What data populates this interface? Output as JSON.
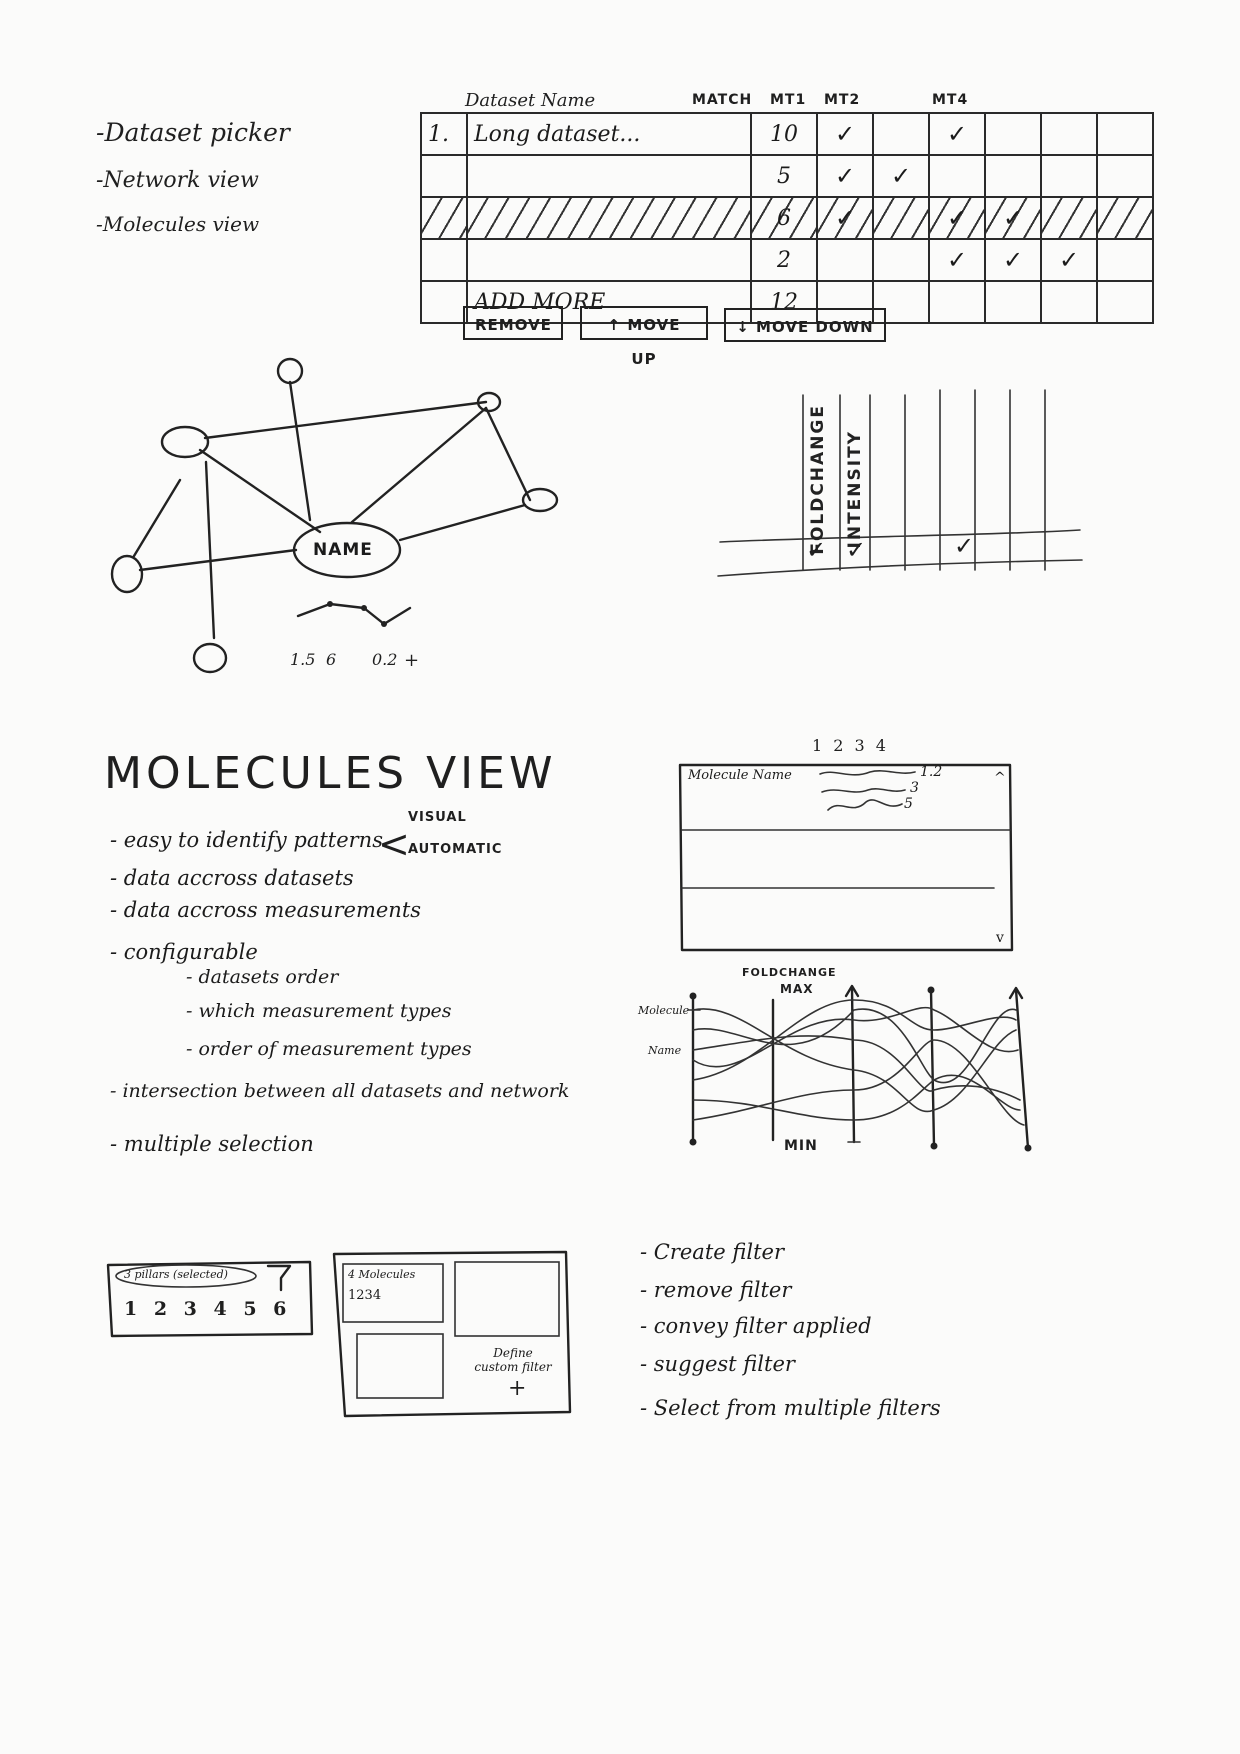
{
  "top_notes": [
    "-Dataset picker",
    "-Network view",
    "-Molecules view"
  ],
  "dataset_table": {
    "headers": {
      "name": "Dataset Name",
      "match": "MATCH",
      "mt1": "MT1",
      "mt2": "MT2",
      "mt4": "MT4"
    },
    "rows": [
      {
        "idx": "1.",
        "name": "Long dataset...",
        "match": "10",
        "checks": [
          "✓",
          "",
          "✓",
          "",
          "",
          ""
        ],
        "hatched": false
      },
      {
        "idx": "",
        "name": "",
        "match": "5",
        "checks": [
          "✓",
          "✓",
          "",
          "",
          "",
          ""
        ],
        "hatched": false
      },
      {
        "idx": "",
        "name": "",
        "match": "6",
        "checks": [
          "✓",
          "",
          "✓",
          "✓",
          "",
          ""
        ],
        "hatched": true
      },
      {
        "idx": "",
        "name": "",
        "match": "2",
        "checks": [
          "",
          "",
          "✓",
          "✓",
          "✓",
          ""
        ],
        "hatched": false
      },
      {
        "idx": "",
        "name": "ADD MORE",
        "match": "12",
        "checks": [
          "",
          "",
          "",
          "",
          "",
          ""
        ],
        "hatched": false
      }
    ],
    "buttons": {
      "remove": "REMOVE",
      "move_up": "↑ MOVE UP",
      "move_down": "↓ MOVE DOWN"
    }
  },
  "network": {
    "center_label": "NAME",
    "spark_labels": [
      "1.5",
      "6",
      "0.2",
      "+"
    ]
  },
  "measure_columns": {
    "labels": [
      "FOLDCHANGE",
      "INTENSITY"
    ],
    "checks": [
      "✓",
      "✓",
      "✓"
    ]
  },
  "molecules_view": {
    "title": "MOLECULES VIEW",
    "bullets": [
      "- easy to identify patterns",
      "- data accross datasets",
      "- data accross measurements",
      "- configurable",
      "- datasets order",
      "- which measurement types",
      "- order of measurement types",
      "- intersection between all datasets and network",
      "- multiple selection"
    ],
    "branch": [
      "VISUAL",
      "AUTOMATIC"
    ]
  },
  "molecule_list": {
    "col_numbers": "1 2 3 4",
    "header": "Molecule Name",
    "values": [
      "1.2",
      "3",
      "5"
    ],
    "scroll_up": "^",
    "scroll_down": "v"
  },
  "parallel_coords": {
    "axis_title": "FOLDCHANGE",
    "max_label": "MAX",
    "min_label": "MIN",
    "left_label_1": "Molecule",
    "left_label_2": "Name"
  },
  "filter_widget": {
    "pill": "3 pillars (selected)",
    "numbers": "1 2 3 4 5 6",
    "filter_icon": "funnel-icon"
  },
  "filter_grid": {
    "card_title": "4 Molecules",
    "card_sub": "1234",
    "custom": "Define custom filter",
    "plus": "+"
  },
  "filter_notes": [
    "- Create filter",
    "- remove filter",
    "- convey filter applied",
    "- suggest filter",
    "- Select from multiple filters"
  ]
}
